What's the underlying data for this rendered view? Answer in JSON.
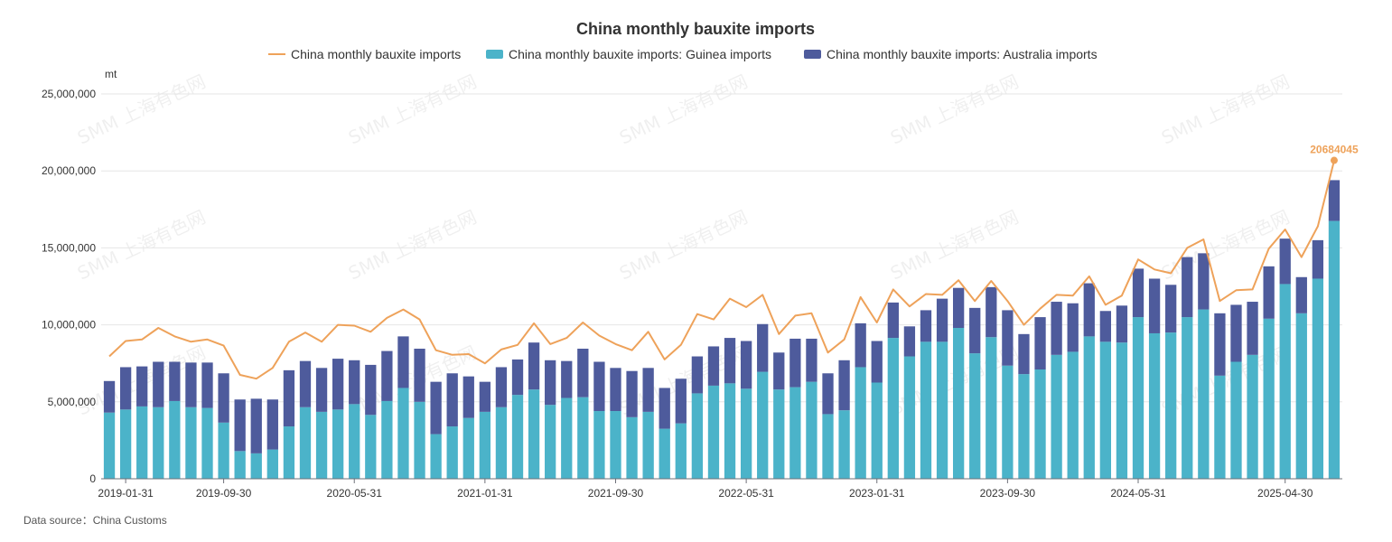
{
  "chart_data": {
    "type": "bar",
    "title": "China monthly bauxite imports",
    "unit": "mt",
    "ylim": [
      0,
      25000000
    ],
    "yticks": [
      "0",
      "5,000,000",
      "10,000,000",
      "15,000,000",
      "20,000,000",
      "25,000,000"
    ],
    "x_tick_labels": [
      "2019-01-31",
      "2019-09-30",
      "2020-05-31",
      "2021-01-31",
      "2021-09-30",
      "2022-05-31",
      "2023-01-31",
      "2023-09-30",
      "2024-05-31",
      "2025-04-30"
    ],
    "x_tick_indices": [
      1,
      7,
      15,
      23,
      31,
      39,
      47,
      55,
      63,
      72
    ],
    "grid": true,
    "legend_position": "top",
    "series": [
      {
        "name": "China monthly bauxite imports",
        "kind": "line",
        "color": "#eea25a",
        "values": [
          7950000,
          8950000,
          9050000,
          9800000,
          9250000,
          8900000,
          9050000,
          8650000,
          6750000,
          6500000,
          7200000,
          8900000,
          9500000,
          8900000,
          10000000,
          9950000,
          9550000,
          10450000,
          11000000,
          10350000,
          8350000,
          8050000,
          8100000,
          7500000,
          8400000,
          8700000,
          10100000,
          8750000,
          9150000,
          10150000,
          9300000,
          8750000,
          8350000,
          9550000,
          7750000,
          8700000,
          10700000,
          10350000,
          11700000,
          11150000,
          11950000,
          9400000,
          10600000,
          10750000,
          8200000,
          9050000,
          11800000,
          10150000,
          12300000,
          11200000,
          12000000,
          11950000,
          12900000,
          11550000,
          12850000,
          11550000,
          10000000,
          11050000,
          11950000,
          11900000,
          13150000,
          11300000,
          11900000,
          14250000,
          13600000,
          13350000,
          15000000,
          15550000,
          11550000,
          12250000,
          12300000,
          14950000,
          16200000,
          14400000,
          16400000,
          20684045
        ]
      },
      {
        "name": "China monthly bauxite imports: Guinea imports",
        "kind": "bar",
        "color": "#4bb3c9",
        "values": [
          4300000,
          4500000,
          4700000,
          4650000,
          5050000,
          4650000,
          4600000,
          3650000,
          1800000,
          1650000,
          1900000,
          3400000,
          4650000,
          4350000,
          4500000,
          4850000,
          4150000,
          5050000,
          5900000,
          5000000,
          2900000,
          3400000,
          3950000,
          4350000,
          4650000,
          5450000,
          5800000,
          4800000,
          5250000,
          5300000,
          4400000,
          4400000,
          4000000,
          4350000,
          3250000,
          3600000,
          5550000,
          6050000,
          6200000,
          5850000,
          6950000,
          5800000,
          5950000,
          6300000,
          4200000,
          4450000,
          7250000,
          6250000,
          9150000,
          7950000,
          8900000,
          8900000,
          9800000,
          8150000,
          9200000,
          7350000,
          6800000,
          7100000,
          8050000,
          8250000,
          9250000,
          8900000,
          8850000,
          10500000,
          9450000,
          9500000,
          10500000,
          11000000,
          6700000,
          7600000,
          8050000,
          10400000,
          12650000,
          10750000,
          13000000,
          16750000
        ]
      },
      {
        "name": "China monthly bauxite imports: Australia imports",
        "kind": "bar",
        "color": "#4e5b9c",
        "values": [
          2050000,
          2750000,
          2600000,
          2950000,
          2550000,
          2900000,
          2950000,
          3200000,
          3350000,
          3550000,
          3250000,
          3650000,
          3000000,
          2850000,
          3300000,
          2850000,
          3250000,
          3250000,
          3350000,
          3450000,
          3400000,
          3450000,
          2700000,
          1950000,
          2600000,
          2300000,
          3050000,
          2900000,
          2400000,
          3150000,
          3200000,
          2800000,
          3000000,
          2850000,
          2650000,
          2900000,
          2400000,
          2550000,
          2950000,
          3100000,
          3100000,
          2400000,
          3150000,
          2800000,
          2650000,
          3250000,
          2850000,
          2700000,
          2300000,
          1950000,
          2050000,
          2800000,
          2600000,
          2950000,
          3250000,
          3600000,
          2600000,
          3400000,
          3450000,
          3150000,
          3450000,
          2000000,
          2400000,
          3150000,
          3550000,
          3100000,
          3900000,
          3650000,
          4050000,
          3700000,
          3450000,
          3400000,
          2950000,
          2350000,
          2500000,
          2650000
        ]
      }
    ],
    "data_labels": [
      {
        "series": 0,
        "index": 75,
        "text": "20684045"
      }
    ],
    "watermark_text": "SMM 上海有色网"
  },
  "footer": {
    "source": "Data source：China Customs"
  }
}
